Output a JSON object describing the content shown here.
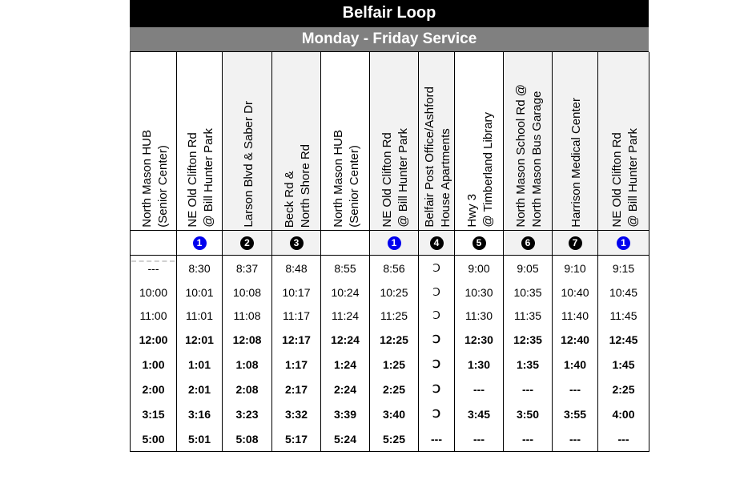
{
  "title": "Belfair Loop",
  "subtitle": "Monday - Friday Service",
  "stops": [
    {
      "name": "North Mason HUB\n(Senior Center)",
      "badge": "",
      "badge_color": ""
    },
    {
      "name": "NE Old Clifton Rd\n@ Bill Hunter Park",
      "badge": "1",
      "badge_color": "blue"
    },
    {
      "name": "Larson Blvd & Saber Dr",
      "badge": "2",
      "badge_color": "black"
    },
    {
      "name": "Beck Rd &\nNorth Shore Rd",
      "badge": "3",
      "badge_color": "black"
    },
    {
      "name": "North Mason HUB\n(Senior Center)",
      "badge": "",
      "badge_color": ""
    },
    {
      "name": "NE Old Clifton Rd\n@ Bill Hunter Park",
      "badge": "1",
      "badge_color": "blue"
    },
    {
      "name": "Belfair Post Office/Ashford\nHouse Apartments",
      "badge": "4",
      "badge_color": "black"
    },
    {
      "name": "Hwy 3\n@ Timberland Library",
      "badge": "5",
      "badge_color": "black"
    },
    {
      "name": "North Mason School Rd @\nNorth Mason Bus Garage",
      "badge": "6",
      "badge_color": "black"
    },
    {
      "name": "Harrison Medical Center",
      "badge": "7",
      "badge_color": "black"
    },
    {
      "name": "NE Old Clifton Rd\n@ Bill Hunter Park",
      "badge": "1",
      "badge_color": "blue"
    }
  ],
  "rows": [
    {
      "bold": false,
      "times": [
        "---",
        "8:30",
        "8:37",
        "8:48",
        "8:55",
        "8:56",
        "Ↄ",
        "9:00",
        "9:05",
        "9:10",
        "9:15"
      ]
    },
    {
      "bold": false,
      "times": [
        "10:00",
        "10:01",
        "10:08",
        "10:17",
        "10:24",
        "10:25",
        "Ↄ",
        "10:30",
        "10:35",
        "10:40",
        "10:45"
      ]
    },
    {
      "bold": false,
      "times": [
        "11:00",
        "11:01",
        "11:08",
        "11:17",
        "11:24",
        "11:25",
        "Ↄ",
        "11:30",
        "11:35",
        "11:40",
        "11:45"
      ]
    },
    {
      "bold": true,
      "times": [
        "12:00",
        "12:01",
        "12:08",
        "12:17",
        "12:24",
        "12:25",
        "Ↄ",
        "12:30",
        "12:35",
        "12:40",
        "12:45"
      ]
    },
    {
      "bold": true,
      "times": [
        "1:00",
        "1:01",
        "1:08",
        "1:17",
        "1:24",
        "1:25",
        "Ↄ",
        "1:30",
        "1:35",
        "1:40",
        "1:45"
      ]
    },
    {
      "bold": true,
      "times": [
        "2:00",
        "2:01",
        "2:08",
        "2:17",
        "2:24",
        "2:25",
        "Ↄ",
        "---",
        "---",
        "---",
        "2:25"
      ]
    },
    {
      "bold": true,
      "times": [
        "3:15",
        "3:16",
        "3:23",
        "3:32",
        "3:39",
        "3:40",
        "Ↄ",
        "3:45",
        "3:50",
        "3:55",
        "4:00"
      ]
    },
    {
      "bold": true,
      "times": [
        "5:00",
        "5:01",
        "5:08",
        "5:17",
        "5:24",
        "5:25",
        "---",
        "---",
        "---",
        "---",
        "---"
      ]
    }
  ]
}
